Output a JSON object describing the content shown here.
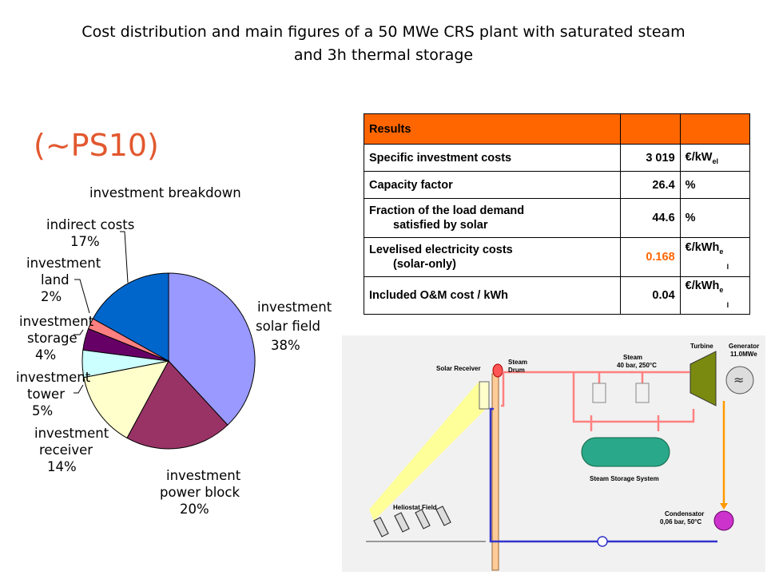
{
  "header": {
    "title_line1": "Cost distribution and main figures of a 50 MWe CRS plant  with saturated steam",
    "title_line2": "and 3h thermal storage",
    "subtitle": "(~PS10)"
  },
  "chart_data": {
    "type": "pie",
    "title": "investment breakdown",
    "slices": [
      {
        "label_lines": [
          "investment",
          "solar field",
          "38%"
        ],
        "value": 38,
        "color": "#9999ff"
      },
      {
        "label_lines": [
          "investment",
          "power block",
          "20%"
        ],
        "value": 20,
        "color": "#993366"
      },
      {
        "label_lines": [
          "investment",
          "receiver",
          "14%"
        ],
        "value": 14,
        "color": "#ffffcc"
      },
      {
        "label_lines": [
          "investment",
          "tower",
          "5%"
        ],
        "value": 5,
        "color": "#ccffff"
      },
      {
        "label_lines": [
          "investment",
          "storage",
          "4%"
        ],
        "value": 4,
        "color": "#660066"
      },
      {
        "label_lines": [
          "investment",
          "land",
          "2%"
        ],
        "value": 2,
        "color": "#ff8080"
      },
      {
        "label_lines": [
          "indirect costs",
          "17%"
        ],
        "value": 17,
        "color": "#0066cc"
      }
    ]
  },
  "results_table": {
    "header": [
      "Results",
      "",
      ""
    ],
    "rows": [
      {
        "label": "Specific investment costs",
        "value": "3 019",
        "unit": "€/kW",
        "unit_sub": "el"
      },
      {
        "label": "Capacity factor",
        "value": "26.4",
        "unit": "%",
        "unit_sub": ""
      },
      {
        "label_line1": "Fraction of the load demand",
        "label_line2": "satisfied by solar",
        "value": "44.6",
        "unit": "%",
        "unit_sub": ""
      },
      {
        "label_line1": "Levelised electricity costs",
        "label_line2": "(solar-only)",
        "value": "0.168",
        "unit": "€/kWh",
        "unit_sub": "e",
        "unit_line2": "l"
      },
      {
        "label": "Included O&M cost / kWh",
        "value": "0.04",
        "unit": "€/kWh",
        "unit_sub": "e",
        "unit_line2": "l"
      }
    ]
  },
  "diagram": {
    "solar_receiver": "Solar Receiver",
    "steam_drum_1": "Steam",
    "steam_drum_2": "Drum",
    "steam_1": "Steam",
    "steam_2": "40 bar, 250°C",
    "turbine": "Turbine",
    "generator_1": "Generator",
    "generator_2": "11.0MWe",
    "storage": "Steam Storage System",
    "heliostat": "Heliostat Field",
    "condensator_1": "Condensator",
    "condensator_2": "0,06 bar, 50°C",
    "colors": {
      "steam": "#ff8080",
      "water": "#3333cc",
      "condensate": "#ff9900",
      "storage": "#2aa88a",
      "turbine": "#7a8a10"
    }
  }
}
